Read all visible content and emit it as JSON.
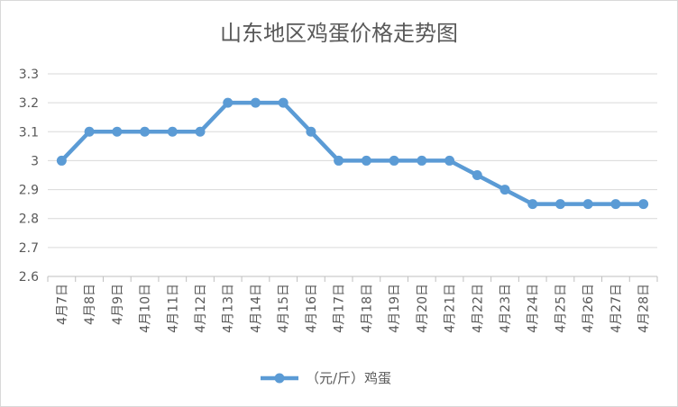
{
  "chart_data": {
    "type": "line",
    "title": "山东地区鸡蛋价格走势图",
    "xlabel": "",
    "ylabel": "",
    "categories": [
      "4月7日",
      "4月8日",
      "4月9日",
      "4月10日",
      "4月11日",
      "4月12日",
      "4月13日",
      "4月14日",
      "4月15日",
      "4月16日",
      "4月17日",
      "4月18日",
      "4月19日",
      "4月20日",
      "4月21日",
      "4月22日",
      "4月23日",
      "4月24日",
      "4月25日",
      "4月26日",
      "4月27日",
      "4月28日"
    ],
    "series": [
      {
        "name": "（元/斤）鸡蛋",
        "values": [
          3.0,
          3.1,
          3.1,
          3.1,
          3.1,
          3.1,
          3.2,
          3.2,
          3.2,
          3.1,
          3.0,
          3.0,
          3.0,
          3.0,
          3.0,
          2.95,
          2.9,
          2.85,
          2.85,
          2.85,
          2.85,
          2.85
        ],
        "color": "#5b9bd5"
      }
    ],
    "ylim": [
      2.6,
      3.3
    ],
    "yticks": [
      "2.6",
      "2.7",
      "2.8",
      "2.9",
      "3",
      "3.1",
      "3.2",
      "3.3"
    ],
    "grid": true,
    "legend": "bottom"
  }
}
